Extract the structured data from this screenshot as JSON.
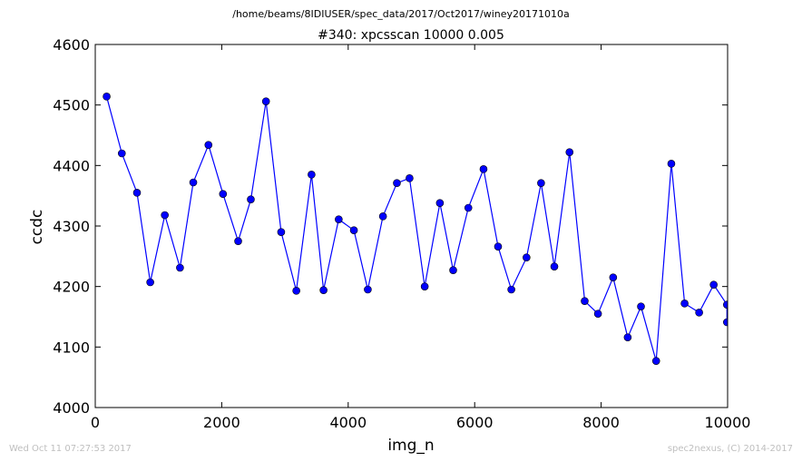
{
  "chart_data": {
    "type": "line",
    "suptitle": "/home/beams/8IDIUSER/spec_data/2017/Oct2017/winey20171010a",
    "title": "#340: xpcsscan 10000 0.005",
    "xlabel": "img_n",
    "ylabel": "ccdc",
    "xlim": [
      0,
      10000
    ],
    "ylim": [
      4000,
      4600
    ],
    "xticks": [
      0,
      2000,
      4000,
      6000,
      8000,
      10000
    ],
    "yticks": [
      4000,
      4100,
      4200,
      4300,
      4400,
      4500,
      4600
    ],
    "xtick_labels": [
      "0",
      "2000",
      "4000",
      "6000",
      "8000",
      "10000"
    ],
    "ytick_labels": [
      "4000",
      "4100",
      "4200",
      "4300",
      "4400",
      "4500",
      "4600"
    ],
    "grid": false,
    "legend": "none",
    "line_color": "#0000ff",
    "marker": "circle",
    "series": [
      {
        "x": [
          180,
          420,
          660,
          870,
          1100,
          1340,
          1550,
          1790,
          2020,
          2260,
          2460,
          2700,
          2940,
          3180,
          3420,
          3610,
          3850,
          4090,
          4310,
          4550,
          4770,
          4970,
          5210,
          5450,
          5660,
          5900,
          6140,
          6370,
          6580,
          6820,
          7050,
          7260,
          7500,
          7740,
          7950,
          8190,
          8420,
          8630,
          8870,
          9110,
          9320,
          9550,
          9780,
          9990,
          9990
        ],
        "y": [
          4514,
          4420,
          4355,
          4207,
          4318,
          4231,
          4372,
          4434,
          4353,
          4275,
          4344,
          4506,
          4290,
          4193,
          4385,
          4194,
          4311,
          4293,
          4195,
          4316,
          4371,
          4379,
          4200,
          4338,
          4227,
          4330,
          4394,
          4266,
          4195,
          4248,
          4371,
          4233,
          4422,
          4176,
          4155,
          4215,
          4116,
          4167,
          4077,
          4403,
          4172,
          4157,
          4203,
          4170,
          4141
        ]
      }
    ]
  },
  "footer": {
    "timestamp": "Wed Oct 11 07:27:53 2017",
    "credit": "spec2nexus, (C) 2014-2017"
  }
}
